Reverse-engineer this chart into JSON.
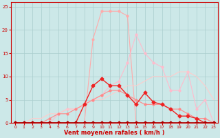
{
  "xlabel": "Vent moyen/en rafales ( km/h )",
  "xlim": [
    -0.5,
    23.5
  ],
  "ylim": [
    0,
    26
  ],
  "yticks": [
    0,
    5,
    10,
    15,
    20,
    25
  ],
  "xticks": [
    0,
    1,
    2,
    3,
    4,
    5,
    6,
    7,
    8,
    9,
    10,
    11,
    12,
    13,
    14,
    15,
    16,
    17,
    18,
    19,
    20,
    21,
    22,
    23
  ],
  "bg_color": "#cce8e8",
  "grid_color": "#aacece",
  "series": [
    {
      "x": [
        0,
        1,
        2,
        3,
        4,
        5,
        6,
        7,
        8,
        9,
        10,
        11,
        12,
        13,
        14,
        15,
        16,
        17,
        18,
        19,
        20,
        21,
        22,
        23
      ],
      "y": [
        0,
        0,
        0,
        0,
        0,
        0,
        0,
        0,
        0,
        18,
        24,
        24,
        24,
        23,
        0,
        0,
        0,
        0,
        0,
        0,
        0,
        0,
        0,
        0
      ],
      "color": "#ffaaaa",
      "lw": 0.8,
      "marker": "o",
      "ms": 2.0
    },
    {
      "x": [
        0,
        1,
        2,
        3,
        4,
        5,
        6,
        7,
        8,
        9,
        10,
        11,
        12,
        13,
        14,
        15,
        16,
        17,
        18,
        19,
        20,
        21,
        22,
        23
      ],
      "y": [
        0,
        0,
        0,
        0,
        0,
        2,
        3,
        3,
        4,
        5,
        6,
        8,
        9,
        13,
        19,
        15,
        13,
        12,
        7,
        7,
        11,
        3,
        5,
        0
      ],
      "color": "#ffbbcc",
      "lw": 0.8,
      "marker": "o",
      "ms": 2.0
    },
    {
      "x": [
        0,
        1,
        2,
        3,
        4,
        5,
        6,
        7,
        8,
        9,
        10,
        11,
        12,
        13,
        14,
        15,
        16,
        17,
        18,
        19,
        20,
        21,
        22,
        23
      ],
      "y": [
        0,
        0,
        1,
        1,
        2,
        2,
        3,
        3,
        4,
        5,
        5,
        6,
        7,
        8,
        8,
        9,
        10,
        10,
        10,
        11,
        11,
        10,
        8,
        5
      ],
      "color": "#ffcccc",
      "lw": 0.8,
      "marker": null,
      "ms": 0
    },
    {
      "x": [
        0,
        1,
        2,
        3,
        4,
        5,
        6,
        7,
        8,
        9,
        10,
        11,
        12,
        13,
        14,
        15,
        16,
        17,
        18,
        19,
        20,
        21,
        22,
        23
      ],
      "y": [
        0,
        0,
        0,
        0,
        1,
        2,
        2,
        3,
        4,
        5,
        6,
        7,
        7,
        6,
        5,
        4,
        4,
        4,
        3,
        3,
        2,
        1,
        1,
        0
      ],
      "color": "#ff8888",
      "lw": 0.8,
      "marker": "o",
      "ms": 2.0
    },
    {
      "x": [
        0,
        1,
        2,
        3,
        4,
        5,
        6,
        7,
        8,
        9,
        10,
        11,
        12,
        13,
        14,
        15,
        16,
        17,
        18,
        19,
        20,
        21,
        22,
        23
      ],
      "y": [
        0,
        0,
        0,
        0,
        0,
        0,
        0,
        0,
        4,
        8,
        9.5,
        8,
        8,
        6,
        4,
        6.5,
        4.5,
        4,
        3,
        1.5,
        1.5,
        1,
        0,
        0
      ],
      "color": "#ee2222",
      "lw": 1.0,
      "marker": "D",
      "ms": 2.5
    },
    {
      "x": [
        0,
        1,
        2,
        3,
        4,
        5,
        6,
        7,
        8,
        9,
        10,
        11,
        12,
        13,
        14,
        15,
        16,
        17,
        18,
        19,
        20,
        21,
        22,
        23
      ],
      "y": [
        0,
        0,
        0,
        0,
        0,
        0,
        0,
        0,
        0,
        0,
        0,
        0,
        0,
        0,
        0,
        0,
        0,
        0,
        0,
        0,
        0,
        0,
        0,
        0
      ],
      "color": "#aa0000",
      "lw": 1.2,
      "marker": "D",
      "ms": 2.5
    }
  ]
}
